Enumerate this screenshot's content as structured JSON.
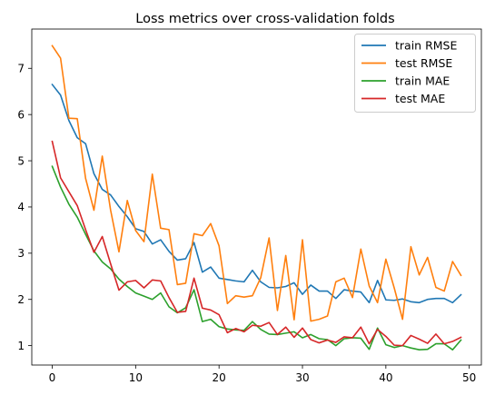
{
  "chart_data": {
    "type": "line",
    "title": "Loss metrics over cross-validation folds",
    "xlabel": "",
    "ylabel": "",
    "xlim": [
      -2.45,
      51.45
    ],
    "ylim": [
      0.58,
      7.85
    ],
    "xticks": [
      0,
      10,
      20,
      30,
      40,
      50
    ],
    "yticks": [
      1,
      2,
      3,
      4,
      5,
      6,
      7
    ],
    "grid": false,
    "legend_position": "top-right",
    "x": [
      0,
      1,
      2,
      3,
      4,
      5,
      6,
      7,
      8,
      9,
      10,
      11,
      12,
      13,
      14,
      15,
      16,
      17,
      18,
      19,
      20,
      21,
      22,
      23,
      24,
      25,
      26,
      27,
      28,
      29,
      30,
      31,
      32,
      33,
      34,
      35,
      36,
      37,
      38,
      39,
      40,
      41,
      42,
      43,
      44,
      45,
      46,
      47,
      48,
      49
    ],
    "series": [
      {
        "name": "train RMSE",
        "color": "#1f77b4",
        "values": [
          6.65,
          6.42,
          5.87,
          5.5,
          5.37,
          4.72,
          4.38,
          4.26,
          4.01,
          3.79,
          3.53,
          3.47,
          3.2,
          3.29,
          3.04,
          2.85,
          2.88,
          3.23,
          2.59,
          2.7,
          2.46,
          2.43,
          2.4,
          2.38,
          2.63,
          2.38,
          2.26,
          2.25,
          2.28,
          2.36,
          2.11,
          2.31,
          2.18,
          2.18,
          2.02,
          2.21,
          2.18,
          2.16,
          1.93,
          2.41,
          1.99,
          1.98,
          2.01,
          1.95,
          1.93,
          2.0,
          2.02,
          2.02,
          1.93,
          2.1
        ]
      },
      {
        "name": "test RMSE",
        "color": "#ff7f0e",
        "values": [
          7.49,
          7.22,
          5.92,
          5.91,
          4.62,
          3.93,
          5.1,
          3.93,
          3.03,
          4.14,
          3.49,
          3.25,
          4.71,
          3.54,
          3.51,
          2.32,
          2.35,
          3.42,
          3.38,
          3.64,
          3.16,
          1.91,
          2.08,
          2.05,
          2.08,
          2.47,
          3.33,
          1.76,
          2.95,
          1.56,
          3.29,
          1.53,
          1.57,
          1.64,
          2.38,
          2.46,
          2.04,
          3.09,
          2.29,
          1.93,
          2.87,
          2.25,
          1.57,
          3.14,
          2.53,
          2.91,
          2.26,
          2.18,
          2.82,
          2.52
        ]
      },
      {
        "name": "train MAE",
        "color": "#2ca02c",
        "values": [
          4.88,
          4.43,
          4.06,
          3.78,
          3.41,
          3.05,
          2.81,
          2.66,
          2.44,
          2.28,
          2.14,
          2.07,
          2.0,
          2.14,
          1.84,
          1.71,
          1.82,
          2.21,
          1.52,
          1.57,
          1.41,
          1.36,
          1.34,
          1.33,
          1.52,
          1.35,
          1.25,
          1.24,
          1.27,
          1.3,
          1.17,
          1.24,
          1.15,
          1.13,
          1.0,
          1.15,
          1.17,
          1.16,
          0.92,
          1.38,
          1.02,
          0.96,
          1.0,
          0.95,
          0.91,
          0.92,
          1.04,
          1.04,
          0.91,
          1.12
        ]
      },
      {
        "name": "test MAE",
        "color": "#d62728",
        "values": [
          5.42,
          4.63,
          4.33,
          4.03,
          3.51,
          3.02,
          3.36,
          2.77,
          2.2,
          2.38,
          2.41,
          2.25,
          2.42,
          2.4,
          2.04,
          1.72,
          1.74,
          2.46,
          1.81,
          1.77,
          1.67,
          1.28,
          1.37,
          1.3,
          1.44,
          1.42,
          1.5,
          1.24,
          1.4,
          1.18,
          1.38,
          1.13,
          1.06,
          1.12,
          1.07,
          1.19,
          1.17,
          1.4,
          1.04,
          1.35,
          1.2,
          1.01,
          1.0,
          1.22,
          1.14,
          1.05,
          1.25,
          1.04,
          1.09,
          1.18
        ]
      }
    ]
  }
}
